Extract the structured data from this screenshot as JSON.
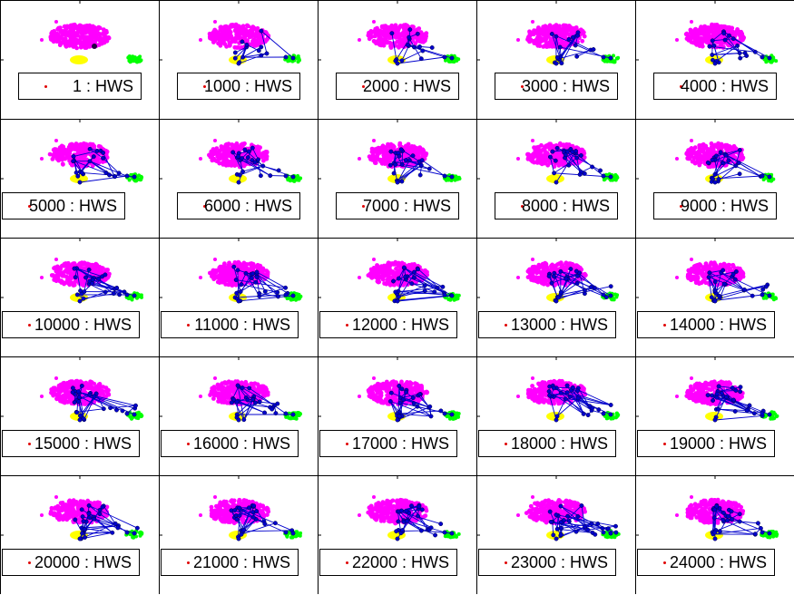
{
  "chart_data": {
    "type": "scatter",
    "rows": 5,
    "cols": 5,
    "legend_marker_color": "#e00000",
    "cluster_colors": {
      "magenta": "#ff00ff",
      "yellow": "#ffff00",
      "green": "#00ff00",
      "path": "#0000cc",
      "path_dark": "#000044"
    },
    "panels": [
      {
        "label": "1 : HWS",
        "progress": 0.0
      },
      {
        "label": "1000 : HWS",
        "progress": 0.25
      },
      {
        "label": "2000 : HWS",
        "progress": 0.4
      },
      {
        "label": "3000 : HWS",
        "progress": 0.5
      },
      {
        "label": "4000 : HWS",
        "progress": 0.55
      },
      {
        "label": "5000 : HWS",
        "progress": 0.65
      },
      {
        "label": "6000 : HWS",
        "progress": 0.7
      },
      {
        "label": "7000 : HWS",
        "progress": 0.72
      },
      {
        "label": "8000 : HWS",
        "progress": 0.75
      },
      {
        "label": "9000 : HWS",
        "progress": 0.78
      },
      {
        "label": "10000 : HWS",
        "progress": 0.82
      },
      {
        "label": "11000 : HWS",
        "progress": 0.84
      },
      {
        "label": "12000 : HWS",
        "progress": 0.86
      },
      {
        "label": "13000 : HWS",
        "progress": 0.87
      },
      {
        "label": "14000 : HWS",
        "progress": 0.88
      },
      {
        "label": "15000 : HWS",
        "progress": 0.9
      },
      {
        "label": "16000 : HWS",
        "progress": 0.91
      },
      {
        "label": "17000 : HWS",
        "progress": 0.92
      },
      {
        "label": "18000 : HWS",
        "progress": 0.93
      },
      {
        "label": "19000 : HWS",
        "progress": 0.94
      },
      {
        "label": "20000 : HWS",
        "progress": 0.95
      },
      {
        "label": "21000 : HWS",
        "progress": 0.96
      },
      {
        "label": "22000 : HWS",
        "progress": 0.97
      },
      {
        "label": "23000 : HWS",
        "progress": 0.98
      },
      {
        "label": "24000 : HWS",
        "progress": 1.0
      }
    ]
  }
}
